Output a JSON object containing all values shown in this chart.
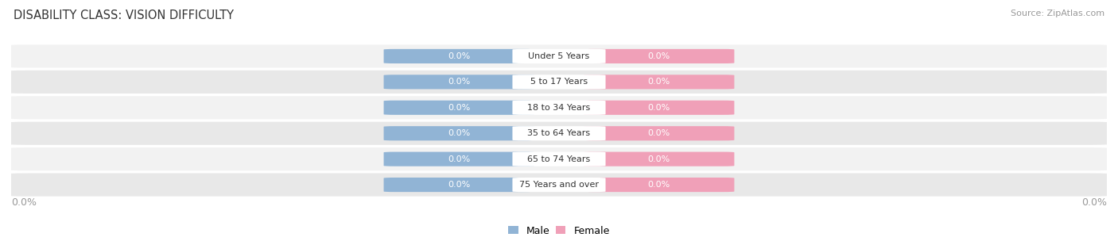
{
  "title": "DISABILITY CLASS: VISION DIFFICULTY",
  "source": "Source: ZipAtlas.com",
  "categories": [
    "Under 5 Years",
    "5 to 17 Years",
    "18 to 34 Years",
    "35 to 64 Years",
    "65 to 74 Years",
    "75 Years and over"
  ],
  "male_values": [
    "0.0%",
    "0.0%",
    "0.0%",
    "0.0%",
    "0.0%",
    "0.0%"
  ],
  "female_values": [
    "0.0%",
    "0.0%",
    "0.0%",
    "0.0%",
    "0.0%",
    "0.0%"
  ],
  "male_color": "#91b4d5",
  "female_color": "#f0a0b8",
  "male_label": "Male",
  "female_label": "Female",
  "background_color": "#ffffff",
  "row_colors": [
    "#f2f2f2",
    "#e8e8e8"
  ],
  "row_pill_color": "#e0e0e0",
  "title_fontsize": 10.5,
  "source_fontsize": 8,
  "category_label_color": "#333333",
  "axis_label_color": "#999999",
  "left_pct_label": "0.0%",
  "right_pct_label": "0.0%"
}
